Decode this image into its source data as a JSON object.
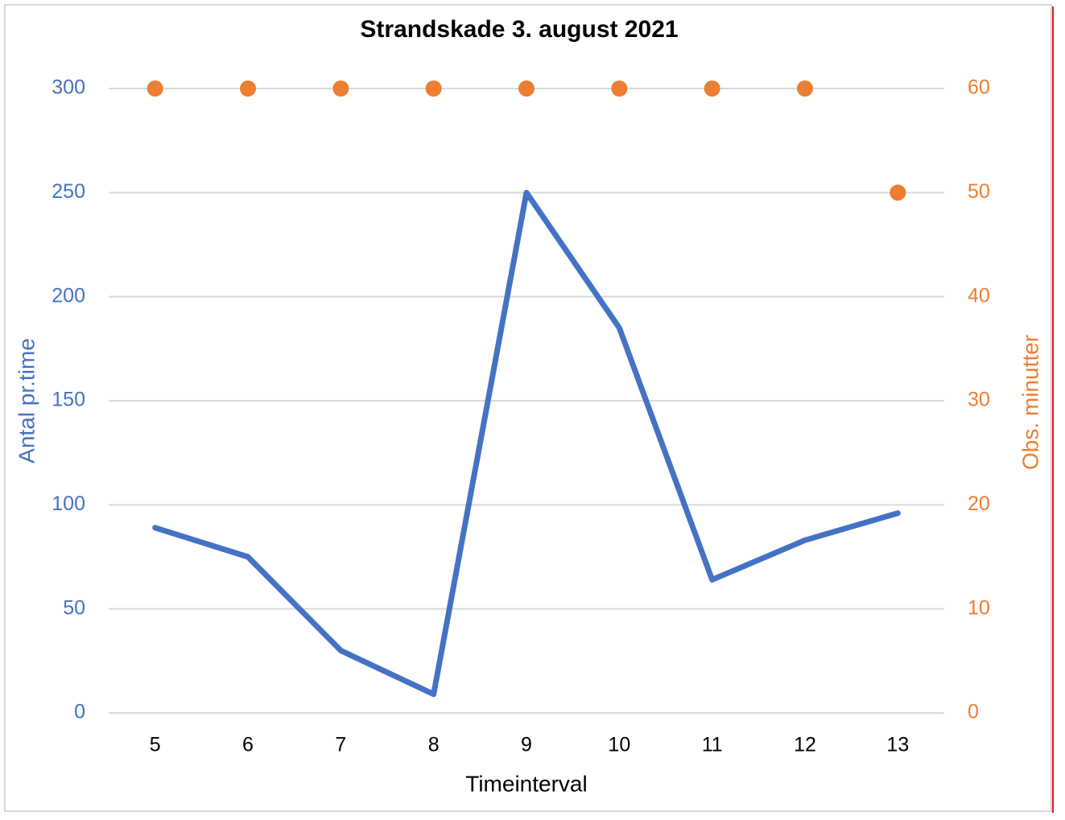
{
  "chart_data": {
    "type": "line",
    "title": "Strandskade 3. august 2021",
    "x_label": "Timeinterval",
    "y_label": "Antal pr.time",
    "y2_label": "Obs. minutter",
    "categories": [
      5,
      6,
      7,
      8,
      9,
      10,
      11,
      12,
      13
    ],
    "series": [
      {
        "name": "Antal pr.time",
        "type": "line",
        "color": "#4472c4",
        "values": [
          89,
          75,
          30,
          9,
          250,
          185,
          64,
          83,
          96
        ]
      },
      {
        "name": "Obs. minutter",
        "type": "scatter",
        "axis": "y2",
        "color": "#ed7d31",
        "values": [
          60,
          60,
          60,
          60,
          60,
          60,
          60,
          60,
          50
        ]
      }
    ],
    "ylim": [
      0,
      300
    ],
    "yticks": [
      0,
      50,
      100,
      150,
      200,
      250,
      300
    ],
    "y2lim": [
      0,
      60
    ],
    "y2ticks": [
      0,
      10,
      20,
      30,
      40,
      50,
      60
    ],
    "grid": true,
    "legend": false
  }
}
